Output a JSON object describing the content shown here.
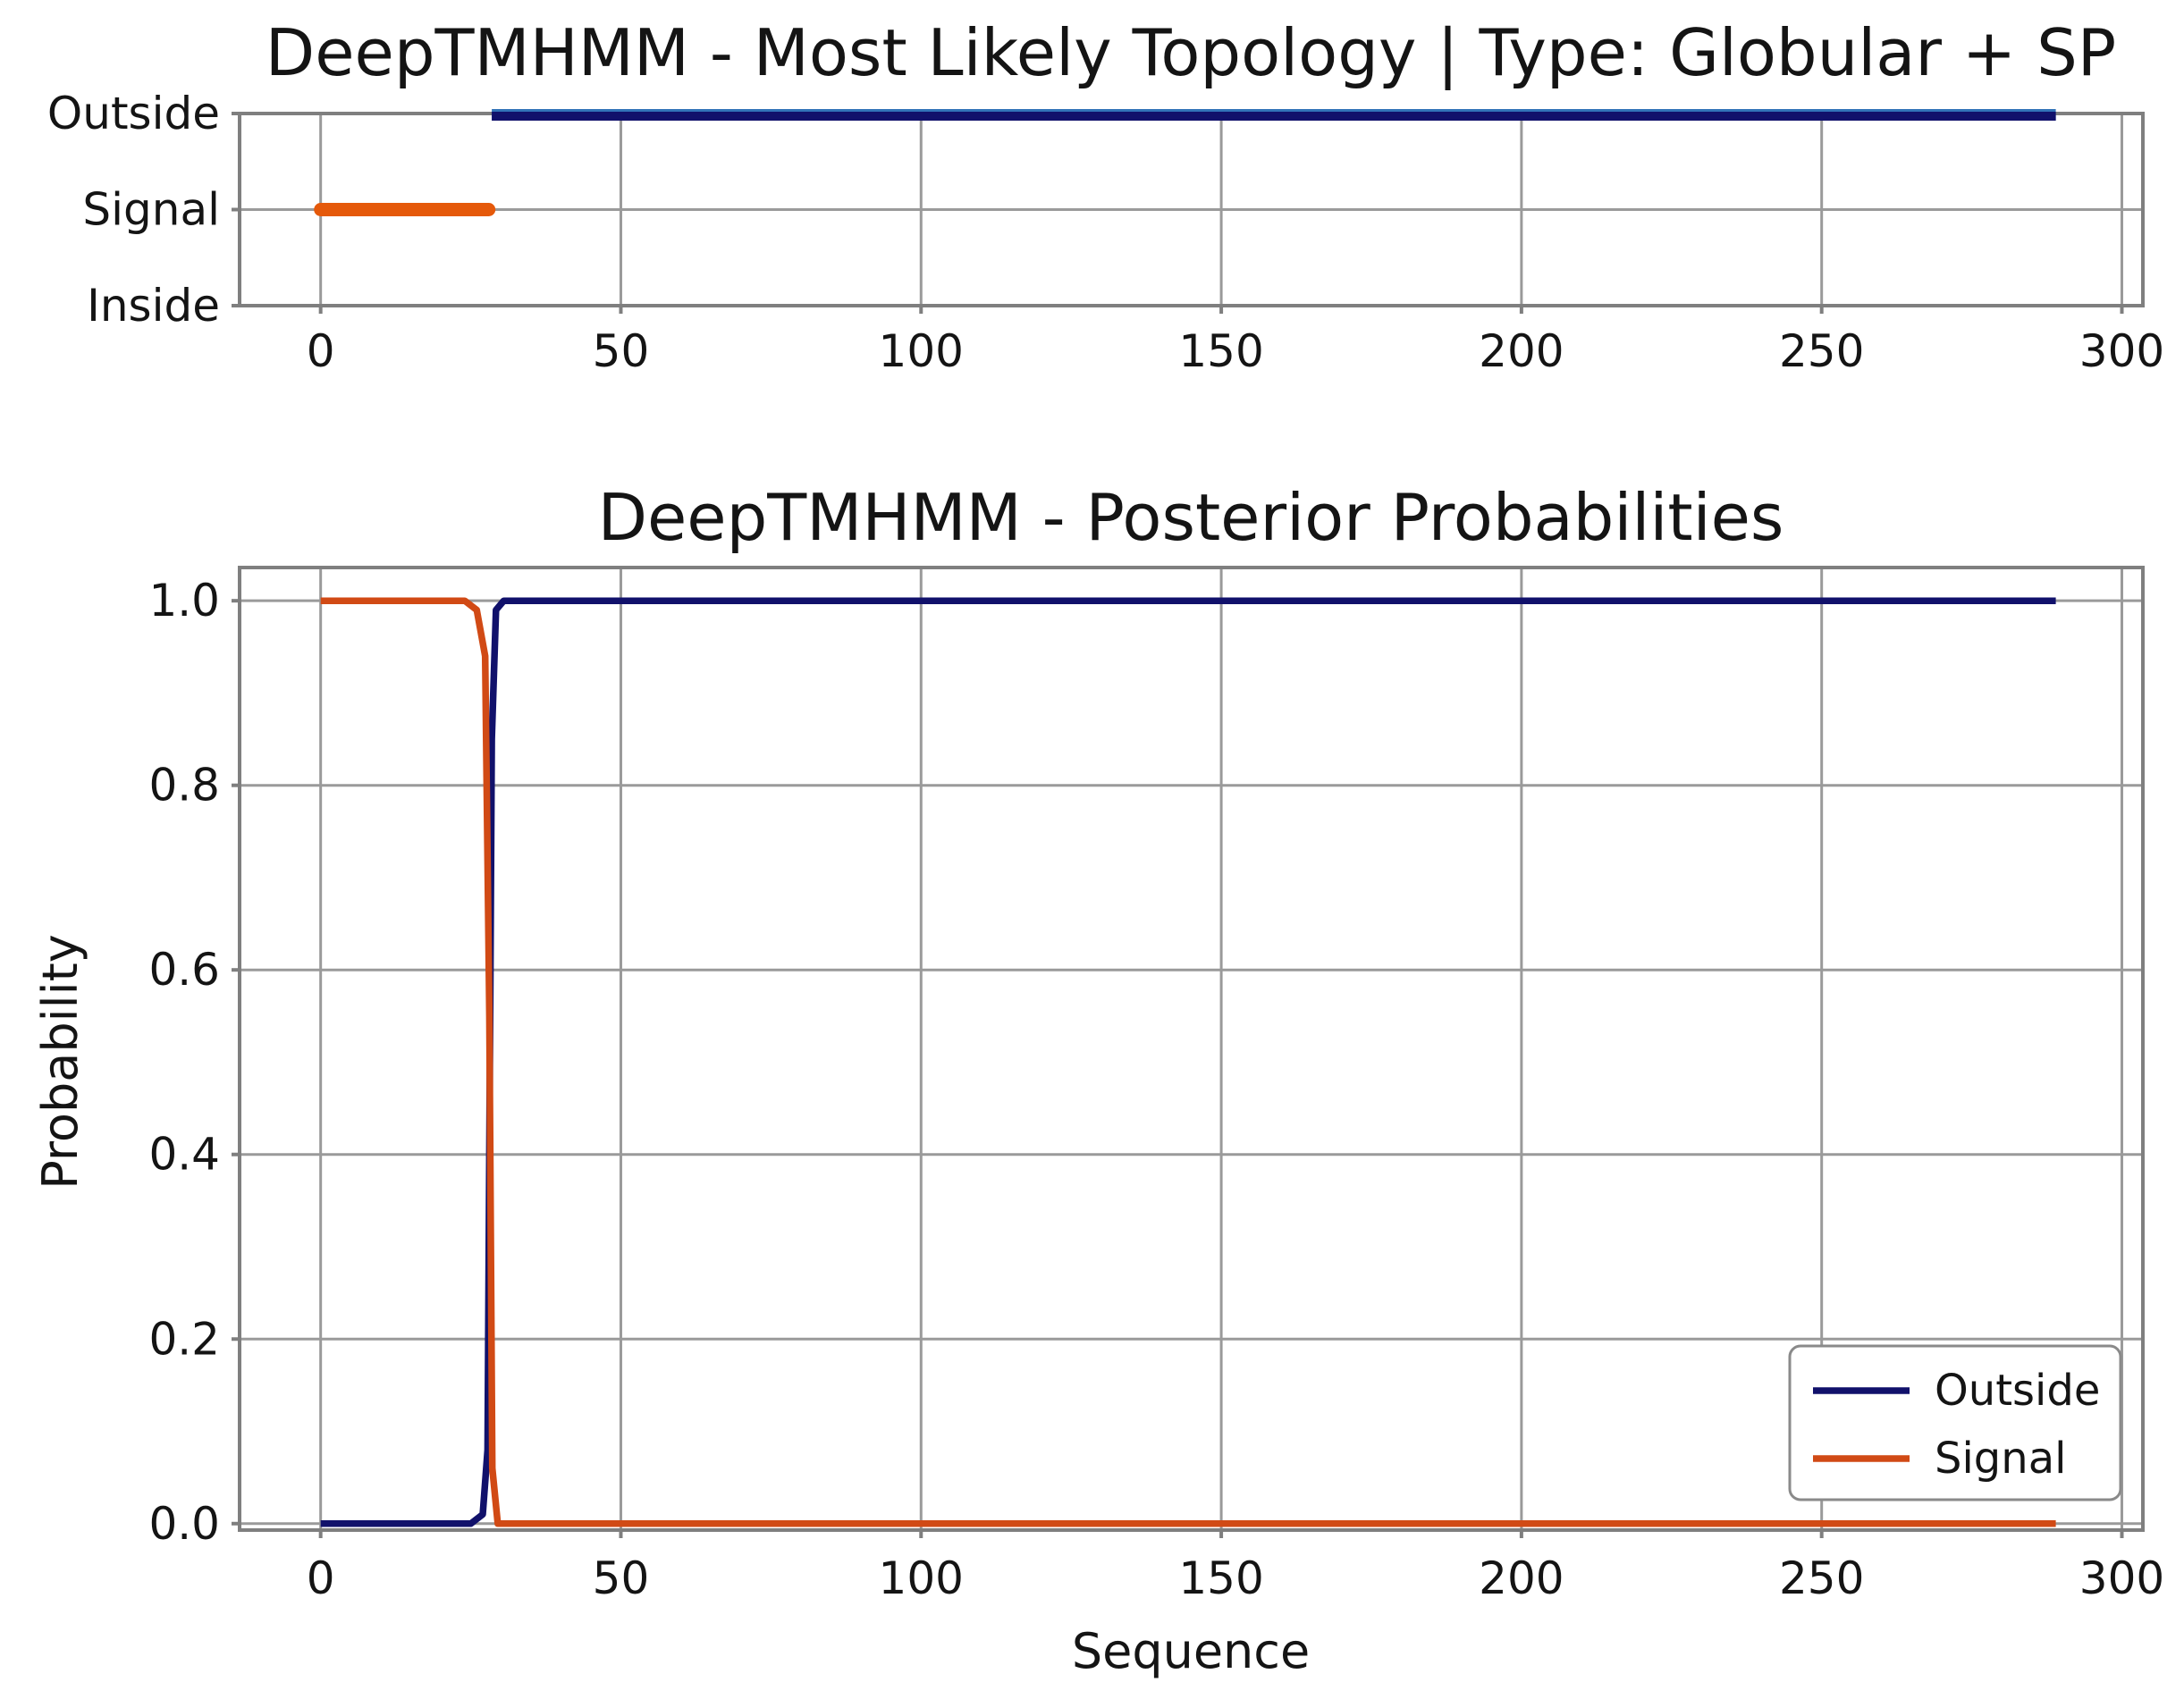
{
  "style": {
    "background": "#ffffff",
    "spine_color": "#7f7f7f",
    "grid_color": "#9a9a9a",
    "text_color": "#141414",
    "legend_border_color": "#8a8a8a"
  },
  "chart_data": [
    {
      "type": "line",
      "title": "DeepTMHMM - Most Likely Topology | Type: Globular + SP",
      "xlabel": "",
      "ylabel": "",
      "xlim": [
        -13.5,
        303.5
      ],
      "ylim": [
        0,
        2
      ],
      "grid": true,
      "x_ticks": [
        {
          "v": 0,
          "label": "0"
        },
        {
          "v": 50,
          "label": "50"
        },
        {
          "v": 100,
          "label": "100"
        },
        {
          "v": 150,
          "label": "150"
        },
        {
          "v": 200,
          "label": "200"
        },
        {
          "v": 250,
          "label": "250"
        },
        {
          "v": 300,
          "label": "300"
        }
      ],
      "y_ticks": [
        {
          "v": 2,
          "label": "Outside"
        },
        {
          "v": 1,
          "label": "Signal"
        },
        {
          "v": 0,
          "label": "Inside"
        }
      ],
      "series": [
        {
          "name": "Signal",
          "color": "#e5590a",
          "linewidth": 15,
          "linecap": "round",
          "points": [
            [
              0,
              1
            ],
            [
              28,
              1
            ]
          ]
        },
        {
          "name": "Outside",
          "color": "#11116b",
          "halo_color": "#3273b8",
          "linewidth": 10,
          "dy": 3,
          "linecap": "butt",
          "points": [
            [
              28.5,
              2
            ],
            [
              289,
              2
            ]
          ]
        }
      ]
    },
    {
      "type": "line",
      "title": "DeepTMHMM - Posterior Probabilities",
      "xlabel": "Sequence",
      "ylabel": "Probability",
      "xlim": [
        -13.5,
        303.5
      ],
      "ylim": [
        -0.007,
        1.036
      ],
      "grid": true,
      "x_ticks": [
        {
          "v": 0,
          "label": "0"
        },
        {
          "v": 50,
          "label": "50"
        },
        {
          "v": 100,
          "label": "100"
        },
        {
          "v": 150,
          "label": "150"
        },
        {
          "v": 200,
          "label": "200"
        },
        {
          "v": 250,
          "label": "250"
        },
        {
          "v": 300,
          "label": "300"
        }
      ],
      "y_ticks": [
        {
          "v": 0.0,
          "label": "0.0"
        },
        {
          "v": 0.2,
          "label": "0.2"
        },
        {
          "v": 0.4,
          "label": "0.4"
        },
        {
          "v": 0.6,
          "label": "0.6"
        },
        {
          "v": 0.8,
          "label": "0.8"
        },
        {
          "v": 1.0,
          "label": "1.0"
        }
      ],
      "legend": {
        "position": "lower right",
        "entries": [
          {
            "label": "Outside",
            "color": "#11116b"
          },
          {
            "label": "Signal",
            "color": "#d14a15"
          }
        ]
      },
      "series": [
        {
          "name": "Outside",
          "color": "#11116b",
          "linewidth": 7.5,
          "linecap": "butt",
          "points": [
            [
              0,
              0
            ],
            [
              25,
              0
            ],
            [
              27,
              0.01
            ],
            [
              27.8,
              0.08
            ],
            [
              28.5,
              0.85
            ],
            [
              29.2,
              0.99
            ],
            [
              30.5,
              1.0
            ],
            [
              289,
              1.0
            ]
          ]
        },
        {
          "name": "Signal",
          "color": "#d14a15",
          "linewidth": 7.5,
          "linecap": "butt",
          "points": [
            [
              0,
              1.0
            ],
            [
              24,
              1.0
            ],
            [
              26,
              0.99
            ],
            [
              27.4,
              0.94
            ],
            [
              28.1,
              0.55
            ],
            [
              28.6,
              0.06
            ],
            [
              29.5,
              0
            ],
            [
              289,
              0
            ]
          ]
        }
      ]
    }
  ]
}
